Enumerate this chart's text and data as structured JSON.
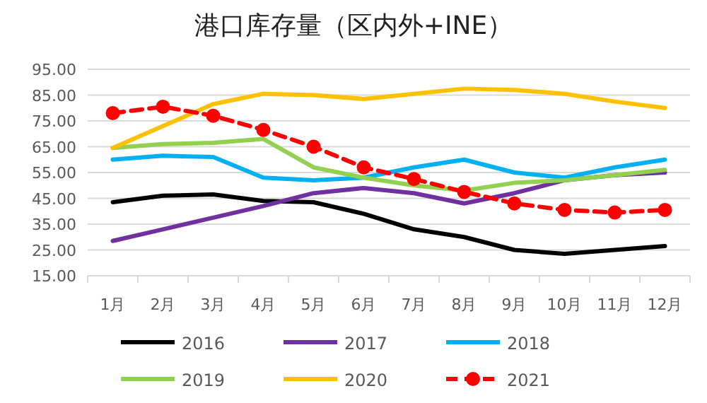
{
  "chart_data": {
    "type": "line",
    "title": "港口库存量（区内外+INE）",
    "categories": [
      "1月",
      "2月",
      "3月",
      "4月",
      "5月",
      "6月",
      "7月",
      "8月",
      "9月",
      "10月",
      "11月",
      "12月"
    ],
    "ylim": [
      15,
      95
    ],
    "yticks": [
      {
        "value": 15,
        "label": "15.00"
      },
      {
        "value": 25,
        "label": "25.00"
      },
      {
        "value": 35,
        "label": "35.00"
      },
      {
        "value": 45,
        "label": "45.00"
      },
      {
        "value": 55,
        "label": "55.00"
      },
      {
        "value": 65,
        "label": "65.00"
      },
      {
        "value": 75,
        "label": "75.00"
      },
      {
        "value": 85,
        "label": "85.00"
      },
      {
        "value": 95,
        "label": "95.00"
      }
    ],
    "grid": "y",
    "legend": "bottom",
    "series": [
      {
        "name": "2016",
        "color": "#000000",
        "values": [
          43.5,
          46,
          46.5,
          44,
          43.5,
          39,
          33,
          30,
          25,
          23.5,
          25,
          26.5
        ]
      },
      {
        "name": "2017",
        "color": "#7030a0",
        "values": [
          28.5,
          33,
          37.5,
          42,
          47,
          49,
          47,
          43,
          47,
          52,
          54,
          55
        ]
      },
      {
        "name": "2018",
        "color": "#00b0f0",
        "values": [
          60,
          61.5,
          61,
          53,
          52,
          53,
          57,
          60,
          55,
          53,
          57,
          60
        ]
      },
      {
        "name": "2019",
        "color": "#92d050",
        "values": [
          64.5,
          66,
          66.5,
          68,
          57,
          53,
          50,
          48,
          51,
          52,
          54,
          56
        ]
      },
      {
        "name": "2020",
        "color": "#ffc000",
        "values": [
          64.5,
          73,
          81.5,
          85.5,
          85,
          83.5,
          85.5,
          87.5,
          87,
          85.5,
          82.5,
          80
        ]
      },
      {
        "name": "2021",
        "color": "#ff0000",
        "marker": "circle",
        "line_style": "dashed",
        "values": [
          78,
          80.5,
          77,
          71.5,
          65,
          57,
          52.5,
          47.5,
          43,
          40.5,
          39.5,
          40.5
        ]
      }
    ]
  }
}
